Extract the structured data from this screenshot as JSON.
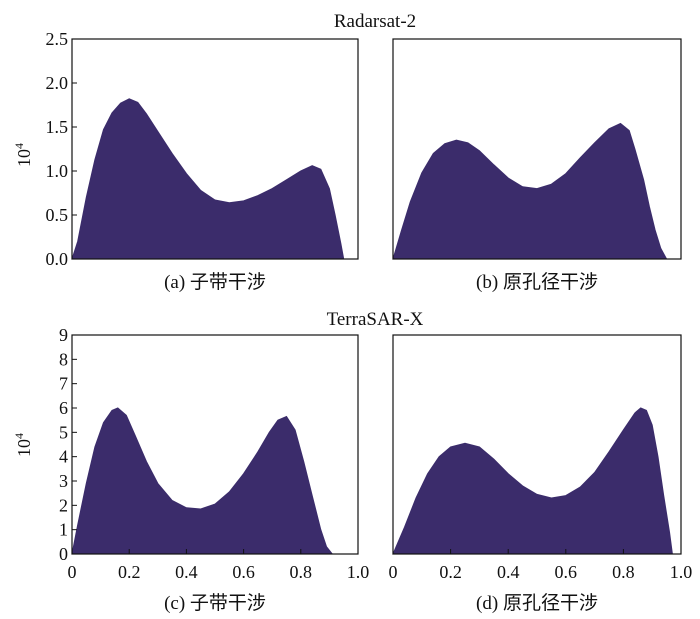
{
  "figure": {
    "fill_color": "#3b2c6b",
    "groups": [
      {
        "title": "Radarsat-2",
        "ylabel": "10",
        "ylabel_sup": "4"
      },
      {
        "title": "TerraSAR-X",
        "ylabel": "10",
        "ylabel_sup": "4"
      }
    ]
  },
  "chart_data": [
    {
      "type": "area",
      "group": "Radarsat-2",
      "caption": "(a) 子带干涉",
      "xlim": [
        0,
        1
      ],
      "ylim": [
        0,
        2.5
      ],
      "yticks": [
        "0.0",
        "0.5",
        "1.0",
        "1.5",
        "2.0",
        "2.5"
      ],
      "show_x_ticks": false,
      "x": [
        0,
        0.02,
        0.05,
        0.08,
        0.11,
        0.14,
        0.17,
        0.2,
        0.23,
        0.26,
        0.3,
        0.35,
        0.4,
        0.45,
        0.5,
        0.55,
        0.6,
        0.65,
        0.7,
        0.75,
        0.8,
        0.84,
        0.87,
        0.9,
        0.92,
        0.94,
        0.95
      ],
      "y": [
        0,
        0.2,
        0.7,
        1.13,
        1.47,
        1.66,
        1.77,
        1.82,
        1.78,
        1.65,
        1.45,
        1.2,
        0.97,
        0.78,
        0.67,
        0.64,
        0.66,
        0.72,
        0.8,
        0.9,
        1.0,
        1.06,
        1.02,
        0.8,
        0.5,
        0.18,
        0
      ]
    },
    {
      "type": "area",
      "group": "Radarsat-2",
      "caption": "(b) 原孔径干涉",
      "xlim": [
        0,
        1
      ],
      "ylim": [
        0,
        2.5
      ],
      "show_y_ticks": false,
      "show_x_ticks": false,
      "x": [
        0,
        0.03,
        0.06,
        0.1,
        0.14,
        0.18,
        0.22,
        0.26,
        0.3,
        0.35,
        0.4,
        0.45,
        0.5,
        0.55,
        0.6,
        0.65,
        0.7,
        0.75,
        0.79,
        0.82,
        0.84,
        0.87,
        0.89,
        0.91,
        0.93,
        0.95
      ],
      "y": [
        0,
        0.33,
        0.65,
        0.98,
        1.2,
        1.31,
        1.35,
        1.32,
        1.23,
        1.07,
        0.92,
        0.82,
        0.8,
        0.85,
        0.97,
        1.15,
        1.32,
        1.48,
        1.54,
        1.46,
        1.25,
        0.9,
        0.6,
        0.33,
        0.12,
        0
      ]
    },
    {
      "type": "area",
      "group": "TerraSAR-X",
      "caption": "(c) 子带干涉",
      "xlim": [
        0,
        1
      ],
      "ylim": [
        0,
        9
      ],
      "yticks": [
        "0",
        "1",
        "2",
        "3",
        "4",
        "5",
        "6",
        "7",
        "8",
        "9"
      ],
      "xticks": [
        "0",
        "0.2",
        "0.4",
        "0.6",
        "0.8",
        "1.0"
      ],
      "x": [
        0,
        0.02,
        0.05,
        0.08,
        0.11,
        0.14,
        0.16,
        0.19,
        0.22,
        0.26,
        0.3,
        0.35,
        0.4,
        0.45,
        0.5,
        0.55,
        0.6,
        0.65,
        0.69,
        0.72,
        0.75,
        0.78,
        0.81,
        0.84,
        0.87,
        0.89,
        0.91
      ],
      "y": [
        0,
        1.2,
        2.9,
        4.4,
        5.4,
        5.9,
        6.0,
        5.7,
        4.9,
        3.8,
        2.9,
        2.2,
        1.9,
        1.85,
        2.05,
        2.55,
        3.3,
        4.2,
        5.0,
        5.5,
        5.65,
        5.1,
        3.8,
        2.4,
        1.0,
        0.3,
        0
      ]
    },
    {
      "type": "area",
      "group": "TerraSAR-X",
      "caption": "(d) 原孔径干涉",
      "xlim": [
        0,
        1
      ],
      "ylim": [
        0,
        9
      ],
      "show_y_ticks": false,
      "xticks": [
        "0",
        "0.2",
        "0.4",
        "0.6",
        "0.8",
        "1.0"
      ],
      "x": [
        0,
        0.04,
        0.08,
        0.12,
        0.16,
        0.2,
        0.25,
        0.3,
        0.35,
        0.4,
        0.45,
        0.5,
        0.55,
        0.6,
        0.65,
        0.7,
        0.75,
        0.8,
        0.84,
        0.86,
        0.88,
        0.9,
        0.92,
        0.94,
        0.96,
        0.97
      ],
      "y": [
        0,
        1.1,
        2.3,
        3.3,
        4.0,
        4.4,
        4.55,
        4.4,
        3.9,
        3.3,
        2.8,
        2.45,
        2.3,
        2.4,
        2.75,
        3.35,
        4.2,
        5.1,
        5.8,
        6.0,
        5.9,
        5.3,
        4.0,
        2.4,
        0.9,
        0
      ]
    }
  ]
}
